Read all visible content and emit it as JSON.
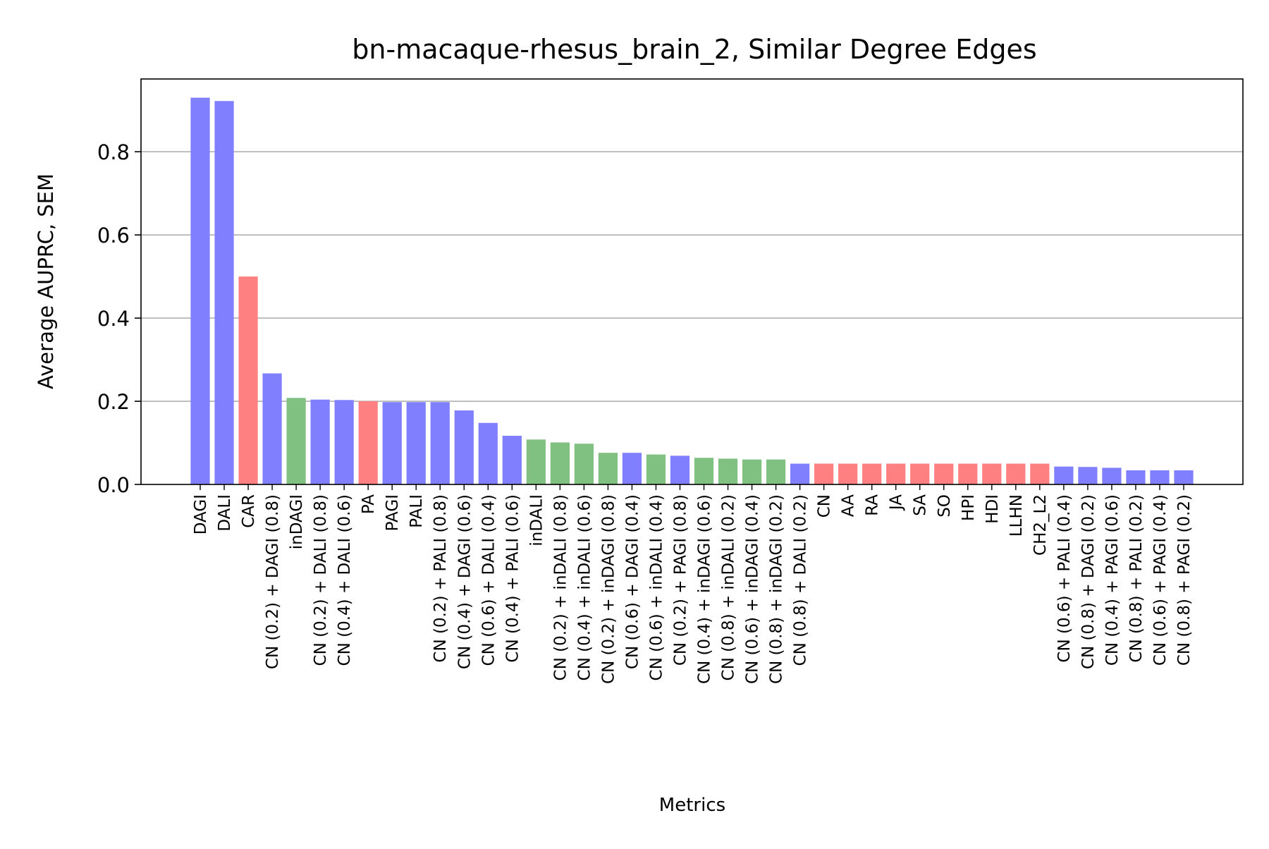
{
  "chart_data": {
    "type": "bar",
    "title": "bn-macaque-rhesus_brain_2, Similar Degree Edges",
    "xlabel": "Metrics",
    "ylabel": "Average AUPRC, SEM",
    "ylim": [
      0,
      0.975
    ],
    "yticks": [
      "0.0",
      "0.2",
      "0.4",
      "0.6",
      "0.8"
    ],
    "grid": "y",
    "legend": "none",
    "colors": {
      "blue": "#8080ff",
      "red": "#ff8080",
      "green": "#80c080"
    },
    "categories": [
      "DAGI",
      "DALI",
      "CAR",
      "CN (0.2) + DAGI (0.8)",
      "inDAGI",
      "CN (0.2) + DALI (0.8)",
      "CN (0.4) + DALI (0.6)",
      "PA",
      "PAGI",
      "PALI",
      "CN (0.2) + PALI (0.8)",
      "CN (0.4) + DAGI (0.6)",
      "CN (0.6) + DALI (0.4)",
      "CN (0.4) + PALI (0.6)",
      "inDALI",
      "CN (0.2) + inDALI (0.8)",
      "CN (0.4) + inDALI (0.6)",
      "CN (0.2) + inDAGI (0.8)",
      "CN (0.6) + DAGI (0.4)",
      "CN (0.6) + inDALI (0.4)",
      "CN (0.2) + PAGI (0.8)",
      "CN (0.4) + inDAGI (0.6)",
      "CN (0.8) + inDALI (0.2)",
      "CN (0.6) + inDAGI (0.4)",
      "CN (0.8) + inDAGI (0.2)",
      "CN (0.8) + DALI (0.2)",
      "CN",
      "AA",
      "RA",
      "JA",
      "SA",
      "SO",
      "HPI",
      "HDI",
      "LLHN",
      "CH2_L2",
      "CN (0.6) + PALI (0.4)",
      "CN (0.8) + DAGI (0.2)",
      "CN (0.4) + PAGI (0.6)",
      "CN (0.8) + PALI (0.2)",
      "CN (0.6) + PAGI (0.4)",
      "CN (0.8) + PAGI (0.2)"
    ],
    "values": [
      0.93,
      0.922,
      0.5,
      0.267,
      0.208,
      0.204,
      0.203,
      0.2,
      0.198,
      0.198,
      0.198,
      0.178,
      0.148,
      0.117,
      0.108,
      0.101,
      0.098,
      0.076,
      0.076,
      0.072,
      0.069,
      0.064,
      0.062,
      0.06,
      0.06,
      0.05,
      0.05,
      0.05,
      0.05,
      0.05,
      0.05,
      0.05,
      0.05,
      0.05,
      0.05,
      0.05,
      0.043,
      0.042,
      0.04,
      0.034,
      0.034,
      0.034
    ],
    "bar_colors": [
      "blue",
      "blue",
      "red",
      "blue",
      "green",
      "blue",
      "blue",
      "red",
      "blue",
      "blue",
      "blue",
      "blue",
      "blue",
      "blue",
      "green",
      "green",
      "green",
      "green",
      "blue",
      "green",
      "blue",
      "green",
      "green",
      "green",
      "green",
      "blue",
      "red",
      "red",
      "red",
      "red",
      "red",
      "red",
      "red",
      "red",
      "red",
      "red",
      "blue",
      "blue",
      "blue",
      "blue",
      "blue",
      "blue"
    ]
  }
}
